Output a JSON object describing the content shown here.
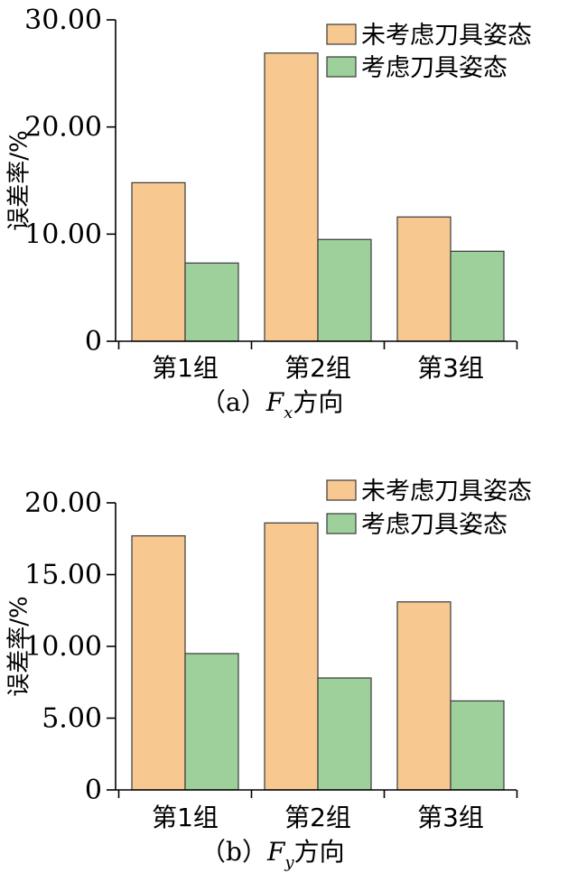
{
  "colors": {
    "series_1": "#F8C891",
    "series_2": "#9DD09A",
    "bar_stroke": "#3a3a3a",
    "axis": "#000000"
  },
  "chart_data": [
    {
      "type": "bar",
      "panel_label": "a",
      "caption": {
        "open_paren": "（",
        "letter": "a",
        "close_paren": "）",
        "force": "F",
        "subscript": "x",
        "direction": "方向"
      },
      "ylabel": "误差率/%",
      "categories": [
        "第1组",
        "第2组",
        "第3组"
      ],
      "series": [
        {
          "name": "未考虑刀具姿态",
          "values": [
            14.8,
            26.9,
            11.6
          ]
        },
        {
          "name": "考虑刀具姿态",
          "values": [
            7.3,
            9.5,
            8.4
          ]
        }
      ],
      "ylim": [
        0,
        30
      ],
      "y_ticks": [
        0,
        10,
        20,
        30
      ],
      "y_tick_labels": [
        "0",
        "10.00",
        "20.00",
        "30.00"
      ],
      "grid": false,
      "legend": "top-right"
    },
    {
      "type": "bar",
      "panel_label": "b",
      "caption": {
        "open_paren": "（",
        "letter": "b",
        "close_paren": "）",
        "force": "F",
        "subscript": "y",
        "direction": "方向"
      },
      "ylabel": "误差率/%",
      "categories": [
        "第1组",
        "第2组",
        "第3组"
      ],
      "series": [
        {
          "name": "未考虑刀具姿态",
          "values": [
            17.7,
            18.6,
            13.1
          ]
        },
        {
          "name": "考虑刀具姿态",
          "values": [
            9.5,
            7.8,
            6.2
          ]
        }
      ],
      "ylim": [
        0,
        20
      ],
      "y_ticks": [
        0,
        5,
        10,
        15,
        20
      ],
      "y_tick_labels": [
        "0",
        "5.00",
        "10.00",
        "15.00",
        "20.00"
      ],
      "grid": false,
      "legend": "top-right"
    }
  ]
}
